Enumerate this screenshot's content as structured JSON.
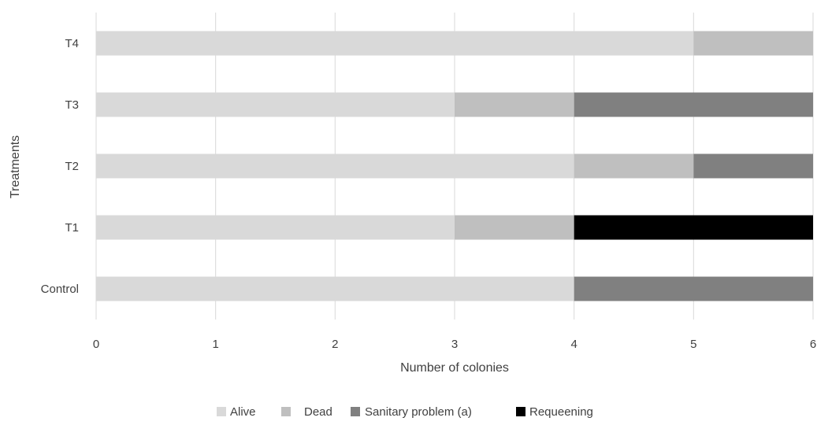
{
  "chart_data": {
    "type": "bar",
    "orientation": "horizontal",
    "stacked": true,
    "title": "",
    "xlabel": "Number of colonies",
    "ylabel": "Treatments",
    "categories": [
      "Control",
      "T1",
      "T2",
      "T3",
      "T4"
    ],
    "xlim": [
      0,
      6
    ],
    "x_ticks": [
      "0",
      "1",
      "2",
      "3",
      "4",
      "5",
      "6"
    ],
    "grid": true,
    "legend_position": "bottom",
    "series": [
      {
        "name": "Alive",
        "color": "#d9d9d9",
        "values": [
          4,
          3,
          4,
          3,
          5
        ]
      },
      {
        "name": "Dead",
        "color": "#bfbfbf",
        "values": [
          0,
          1,
          1,
          1,
          1
        ]
      },
      {
        "name": "Sanitary problem (a)",
        "color": "#808080",
        "values": [
          2,
          0,
          1,
          2,
          0
        ]
      },
      {
        "name": "Requeening",
        "color": "#000000",
        "values": [
          0,
          2,
          0,
          0,
          0
        ]
      }
    ]
  }
}
